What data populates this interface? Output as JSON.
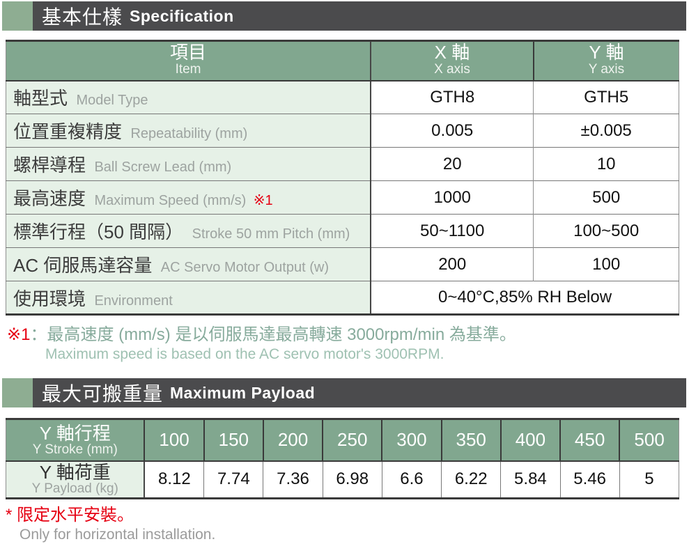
{
  "colors": {
    "header_bar_bg": "#4b4b4d",
    "accent_green": "#8ead92",
    "table_header_green": "#81a78f",
    "label_cell_green": "#e6f1e7",
    "note_red": "#e60012",
    "note_green_zh": "#87ab9c",
    "note_green_en": "#9fc1b2"
  },
  "spec_section": {
    "title_zh": "基本仕樣",
    "title_en": "Specification"
  },
  "spec_table": {
    "header": {
      "item_zh": "項目",
      "item_en": "Item",
      "x_zh": "X 軸",
      "x_en": "X axis",
      "y_zh": "Y 軸",
      "y_en": "Y axis"
    },
    "rows": [
      {
        "label_zh": "軸型式",
        "label_en": "Model Type",
        "x": "GTH8",
        "y": "GTH5"
      },
      {
        "label_zh": "位置重複精度",
        "label_en": "Repeatability (mm)",
        "x": "0.005",
        "y": "±0.005"
      },
      {
        "label_zh": "螺桿導程",
        "label_en": "Ball Screw Lead (mm)",
        "x": "20",
        "y": "10"
      },
      {
        "label_zh": "最高速度",
        "label_en": "Maximum Speed (mm/s)",
        "note_ref": "※1",
        "x": "1000",
        "y": "500"
      },
      {
        "label_zh": "標準行程（50 間隔）",
        "label_en": "Stroke 50 mm Pitch (mm)",
        "x": "50~1100",
        "y": "100~500"
      },
      {
        "label_zh": "AC 伺服馬達容量",
        "label_en": "AC Servo Motor Output (w)",
        "x": "200",
        "y": "100"
      },
      {
        "label_zh": "使用環境",
        "label_en": "Environment",
        "merged_value": "0~40°C,85% RH Below"
      }
    ]
  },
  "note1": {
    "ref": "※1",
    "zh": "：最高速度 (mm/s) 是以伺服馬達最高轉速 3000rpm/min 為基準。",
    "en": "Maximum speed is based on the AC servo motor's 3000RPM."
  },
  "payload_section": {
    "title_zh": "最大可搬重量",
    "title_en": "Maximum Payload"
  },
  "payload_table": {
    "stroke_label_zh": "Y 軸行程",
    "stroke_label_en": "Y Stroke (mm)",
    "payload_label_zh": "Y 軸荷重",
    "payload_label_en": "Y Payload (kg)",
    "strokes": [
      "100",
      "150",
      "200",
      "250",
      "300",
      "350",
      "400",
      "450",
      "500"
    ],
    "payloads": [
      "8.12",
      "7.74",
      "7.36",
      "6.98",
      "6.6",
      "6.22",
      "5.84",
      "5.46",
      "5"
    ]
  },
  "note2": {
    "zh": "* 限定水平安裝。",
    "en": "Only for horizontal installation."
  }
}
